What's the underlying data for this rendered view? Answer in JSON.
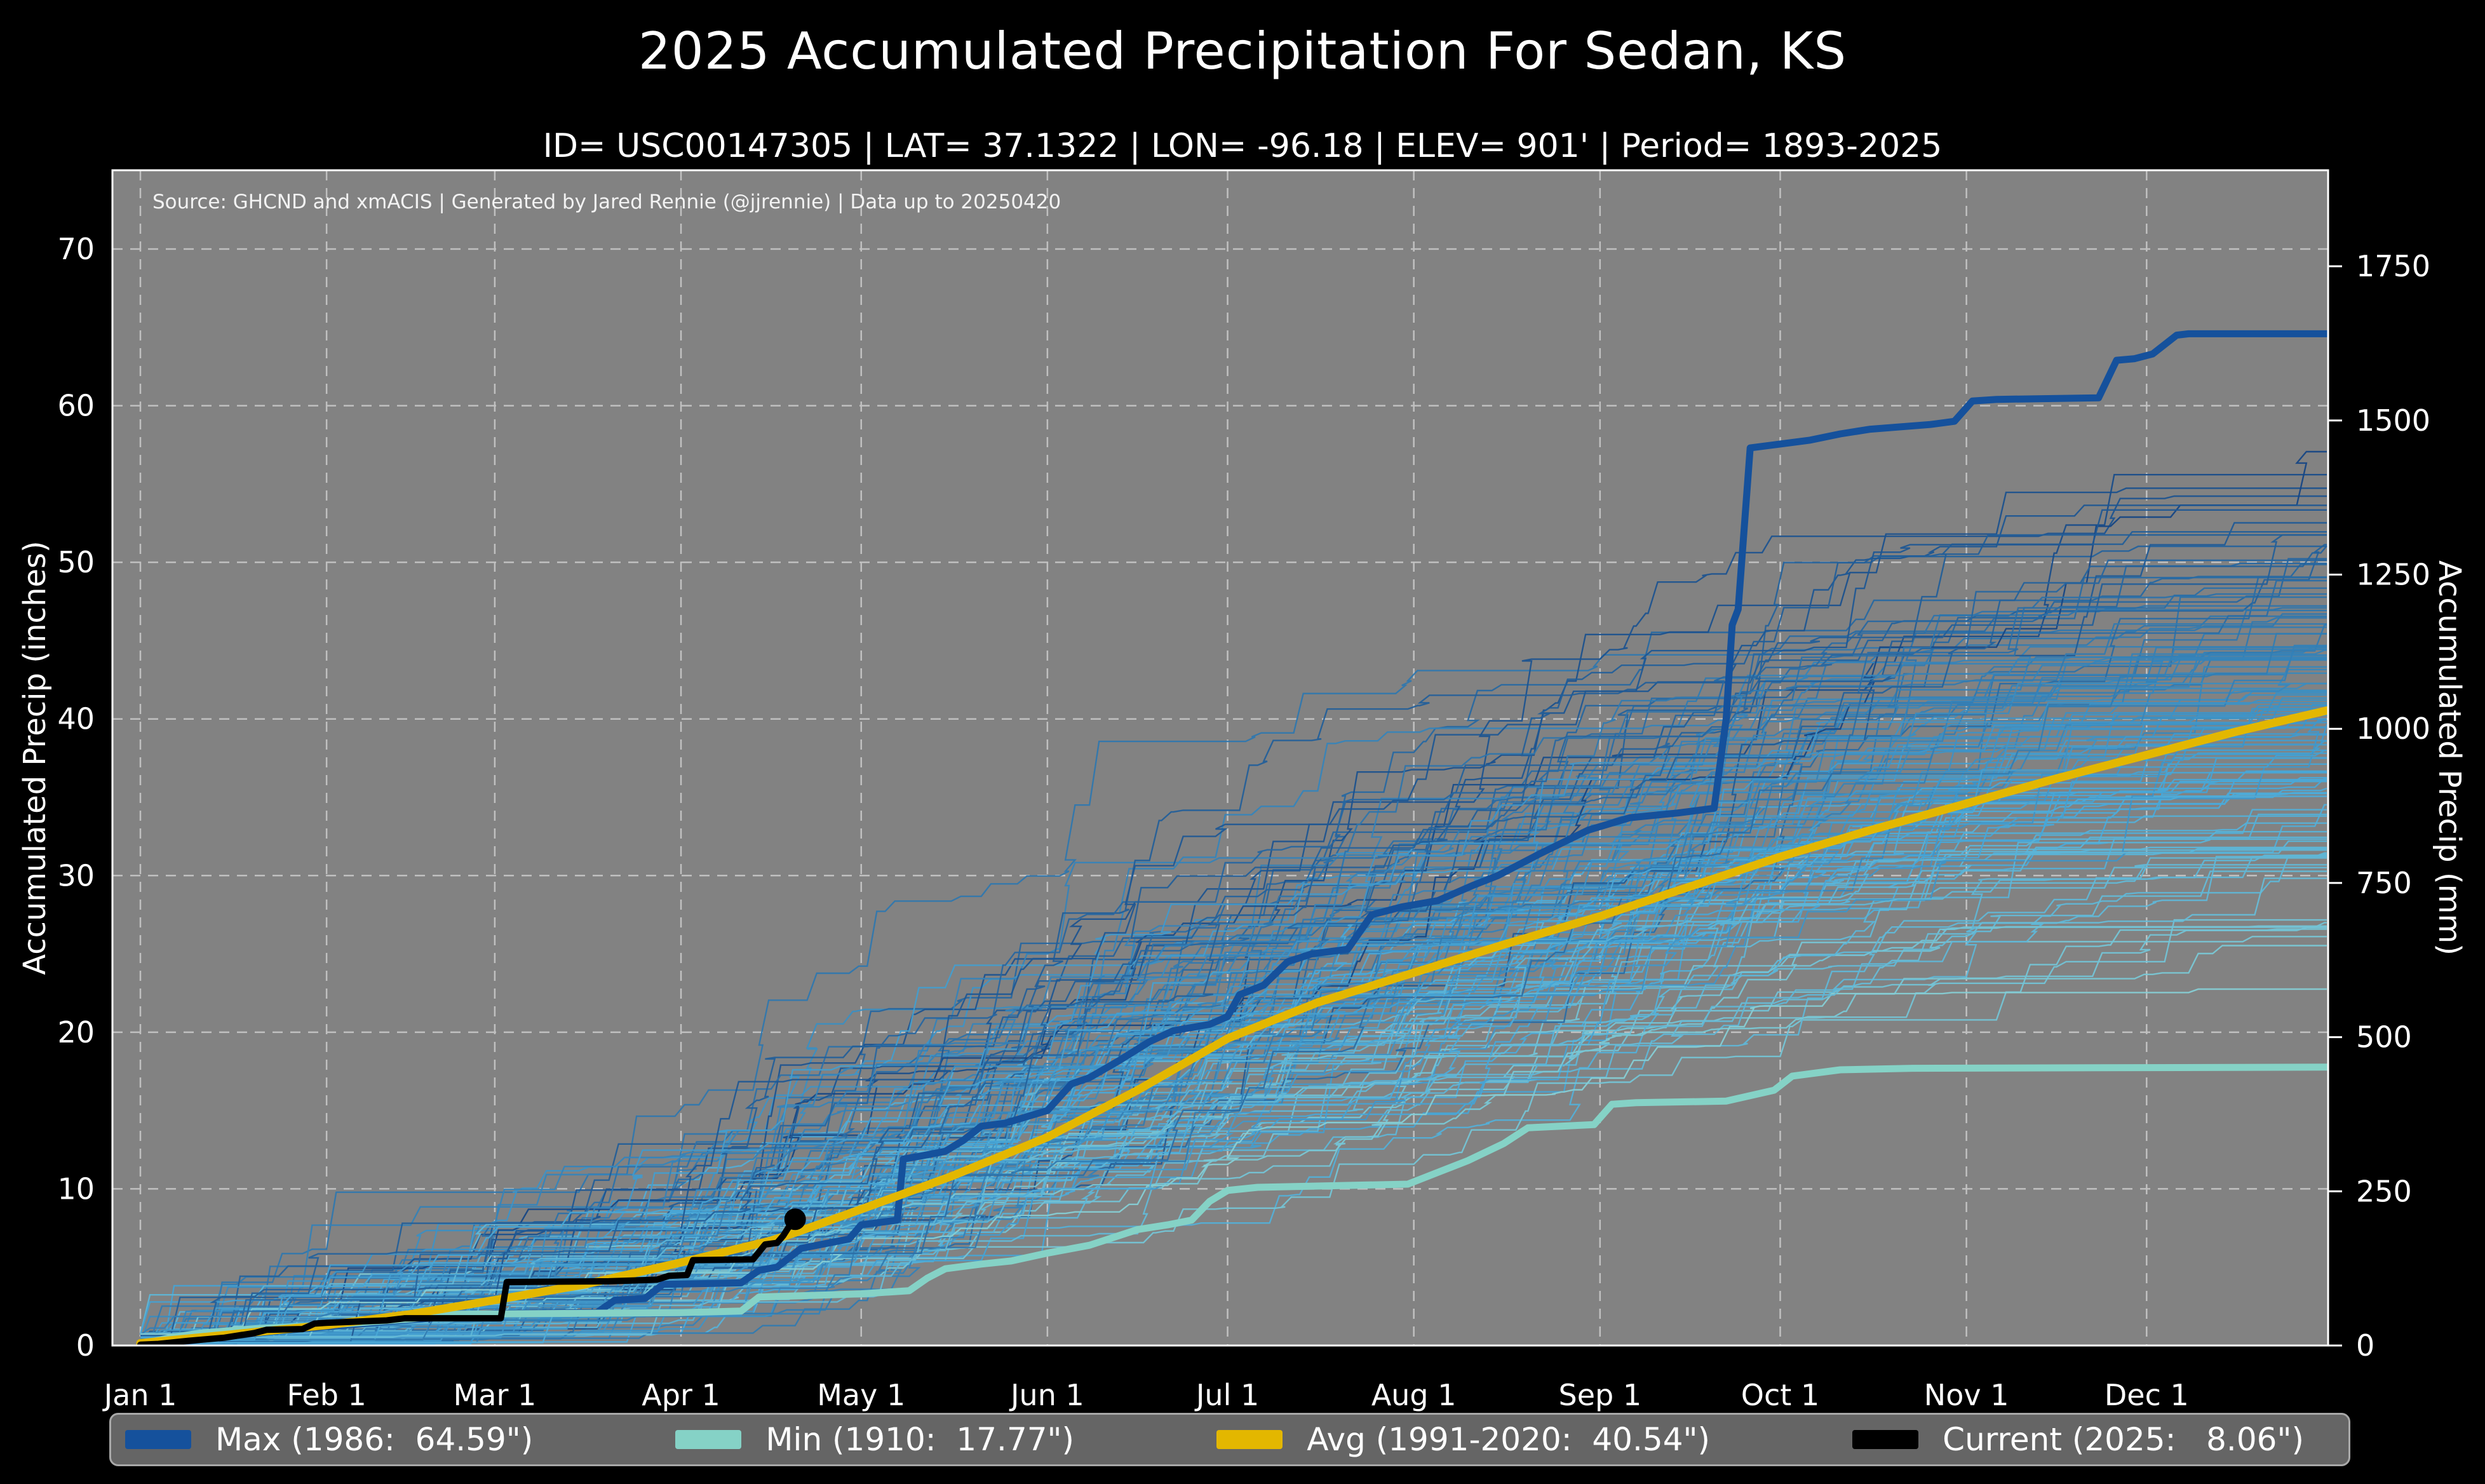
{
  "title": "2025 Accumulated Precipitation For Sedan, KS",
  "subtitle": "ID= USC00147305 | LAT= 37.1322 | LON= -96.18 | ELEV= 901' | Period= 1893-2025",
  "source_note": "Source: GHCND and xmACIS | Generated by Jared Rennie (@jjrennie) | Data up to 20250420",
  "colors": {
    "figure_bg": "#000000",
    "plot_bg": "#828282",
    "grid": "#ffffff",
    "spine": "#ffffff",
    "text": "#ffffff",
    "legend_bg": "#656565",
    "legend_border": "#a8a8a8"
  },
  "chart_data": {
    "type": "line",
    "title": "2025 Accumulated Precipitation For Sedan, KS",
    "xlabel": "",
    "ylabel_left": "Accumulated Precip (inches)",
    "ylabel_right": "Accumulated Precip (mm)",
    "x_tick_labels": [
      "Jan 1",
      "Feb 1",
      "Mar 1",
      "Apr 1",
      "May 1",
      "Jun 1",
      "Jul 1",
      "Aug 1",
      "Sep 1",
      "Oct 1",
      "Nov 1",
      "Dec 1"
    ],
    "x_tick_days": [
      0,
      31,
      59,
      90,
      120,
      151,
      181,
      212,
      243,
      273,
      304,
      334
    ],
    "y_ticks_inches": [
      0,
      10,
      20,
      30,
      40,
      50,
      60,
      70
    ],
    "y_ticks_mm": [
      0,
      250,
      500,
      750,
      1000,
      1250,
      1500,
      1750
    ],
    "ylim_inches": [
      0,
      75
    ],
    "xlim_days": [
      0,
      364
    ],
    "grid": "dashed-white",
    "legend_position": "bottom",
    "series": [
      {
        "name": "Max",
        "legend": "Max (1986:  64.59\")",
        "year": 1986,
        "total_inches": 64.59,
        "color": "#15519c",
        "width": 11,
        "points": [
          [
            0,
            0.05
          ],
          [
            8,
            0.3
          ],
          [
            15,
            0.6
          ],
          [
            22,
            0.9
          ],
          [
            31,
            1.2
          ],
          [
            40,
            1.5
          ],
          [
            50,
            1.8
          ],
          [
            59,
            2.05
          ],
          [
            76,
            2.1
          ],
          [
            79,
            2.9
          ],
          [
            84,
            3.0
          ],
          [
            87,
            3.9
          ],
          [
            100,
            4.0
          ],
          [
            103,
            4.8
          ],
          [
            106,
            5.0
          ],
          [
            110,
            6.2
          ],
          [
            114,
            6.5
          ],
          [
            118,
            6.8
          ],
          [
            120,
            7.7
          ],
          [
            126,
            8.0
          ],
          [
            127,
            11.9
          ],
          [
            130,
            12.1
          ],
          [
            134,
            12.4
          ],
          [
            137,
            13.1
          ],
          [
            140,
            14.0
          ],
          [
            144,
            14.2
          ],
          [
            151,
            15.0
          ],
          [
            155,
            16.7
          ],
          [
            158,
            17.1
          ],
          [
            163,
            18.2
          ],
          [
            168,
            19.4
          ],
          [
            172,
            20.1
          ],
          [
            178,
            20.5
          ],
          [
            181,
            21.0
          ],
          [
            183,
            22.4
          ],
          [
            187,
            23.0
          ],
          [
            191,
            24.5
          ],
          [
            195,
            25.0
          ],
          [
            201,
            25.3
          ],
          [
            205,
            27.5
          ],
          [
            210,
            28.0
          ],
          [
            216,
            28.4
          ],
          [
            222,
            29.4
          ],
          [
            226,
            30.0
          ],
          [
            233,
            31.4
          ],
          [
            241,
            32.9
          ],
          [
            248,
            33.7
          ],
          [
            256,
            34.0
          ],
          [
            262,
            34.3
          ],
          [
            264,
            40.0
          ],
          [
            265,
            46.0
          ],
          [
            266,
            47.0
          ],
          [
            268,
            57.3
          ],
          [
            272,
            57.5
          ],
          [
            278,
            57.8
          ],
          [
            283,
            58.2
          ],
          [
            288,
            58.5
          ],
          [
            298,
            58.8
          ],
          [
            302,
            59.0
          ],
          [
            305,
            60.3
          ],
          [
            309,
            60.4
          ],
          [
            326,
            60.5
          ],
          [
            329,
            62.9
          ],
          [
            332,
            63.0
          ],
          [
            335,
            63.3
          ],
          [
            339,
            64.5
          ],
          [
            341,
            64.59
          ],
          [
            364,
            64.59
          ]
        ]
      },
      {
        "name": "Min",
        "legend": "Min (1910:  17.77\")",
        "year": 1910,
        "total_inches": 17.77,
        "color": "#85d2c6",
        "width": 11,
        "points": [
          [
            0,
            0.1
          ],
          [
            5,
            0.5
          ],
          [
            10,
            0.8
          ],
          [
            20,
            1.1
          ],
          [
            31,
            1.3
          ],
          [
            45,
            1.7
          ],
          [
            52,
            2.0
          ],
          [
            90,
            2.1
          ],
          [
            100,
            2.2
          ],
          [
            103,
            3.1
          ],
          [
            112,
            3.2
          ],
          [
            120,
            3.3
          ],
          [
            128,
            3.5
          ],
          [
            131,
            4.3
          ],
          [
            134,
            4.9
          ],
          [
            140,
            5.2
          ],
          [
            145,
            5.4
          ],
          [
            151,
            5.9
          ],
          [
            158,
            6.4
          ],
          [
            162,
            6.9
          ],
          [
            166,
            7.4
          ],
          [
            171,
            7.7
          ],
          [
            175,
            8.0
          ],
          [
            178,
            9.2
          ],
          [
            181,
            9.9
          ],
          [
            186,
            10.1
          ],
          [
            211,
            10.3
          ],
          [
            217,
            11.2
          ],
          [
            221,
            11.8
          ],
          [
            227,
            12.9
          ],
          [
            231,
            13.9
          ],
          [
            242,
            14.1
          ],
          [
            245,
            15.4
          ],
          [
            249,
            15.5
          ],
          [
            264,
            15.6
          ],
          [
            272,
            16.3
          ],
          [
            275,
            17.2
          ],
          [
            283,
            17.6
          ],
          [
            295,
            17.7
          ],
          [
            364,
            17.77
          ]
        ]
      },
      {
        "name": "Avg",
        "legend": "Avg (1991-2020:  40.54\")",
        "period": "1991-2020",
        "total_inches": 40.54,
        "color": "#e3b700",
        "width": 13,
        "points": [
          [
            0,
            0.15
          ],
          [
            15,
            0.7
          ],
          [
            31,
            1.3
          ],
          [
            45,
            2.0
          ],
          [
            59,
            2.9
          ],
          [
            74,
            3.9
          ],
          [
            90,
            5.3
          ],
          [
            105,
            6.7
          ],
          [
            109,
            7.2
          ],
          [
            120,
            8.7
          ],
          [
            135,
            10.8
          ],
          [
            151,
            13.3
          ],
          [
            166,
            16.3
          ],
          [
            181,
            19.6
          ],
          [
            196,
            21.9
          ],
          [
            212,
            23.8
          ],
          [
            227,
            25.6
          ],
          [
            243,
            27.4
          ],
          [
            258,
            29.3
          ],
          [
            273,
            31.2
          ],
          [
            288,
            32.9
          ],
          [
            304,
            34.6
          ],
          [
            319,
            36.2
          ],
          [
            334,
            37.7
          ],
          [
            349,
            39.2
          ],
          [
            364,
            40.54
          ]
        ]
      },
      {
        "name": "Current",
        "legend": "Current (2025:   8.06\")",
        "year": 2025,
        "total_inches": 8.06,
        "data_through": "20250420",
        "color": "#000000",
        "width": 10,
        "marker": [
          109,
          8.06
        ],
        "points": [
          [
            0,
            0.05
          ],
          [
            3,
            0.1
          ],
          [
            8,
            0.3
          ],
          [
            14,
            0.5
          ],
          [
            19,
            0.8
          ],
          [
            21,
            1.0
          ],
          [
            27,
            1.05
          ],
          [
            29,
            1.4
          ],
          [
            31,
            1.45
          ],
          [
            41,
            1.6
          ],
          [
            44,
            1.74
          ],
          [
            60,
            1.74
          ],
          [
            61,
            4.05
          ],
          [
            78,
            4.1
          ],
          [
            86,
            4.2
          ],
          [
            88,
            4.45
          ],
          [
            91,
            4.5
          ],
          [
            92,
            5.45
          ],
          [
            102,
            5.5
          ],
          [
            104,
            6.45
          ],
          [
            106,
            6.55
          ],
          [
            107,
            7.0
          ],
          [
            108,
            7.6
          ],
          [
            109,
            8.06
          ]
        ]
      }
    ],
    "ensemble": {
      "note": "Thin background traces: one accumulated-precip curve per year 1893-2024, colored light teal (dry years) to dark navy (wet years); individual traces approximated procedurally.",
      "count": 130,
      "years": "1893-2024",
      "final_range": [
        18,
        58.5
      ],
      "color_low": "#9bdcd2",
      "color_mid": "#49a8d8",
      "color_high": "#123f7e",
      "line_width": 2.4
    }
  },
  "legend": {
    "items": [
      {
        "label": "Max (1986:  64.59\")"
      },
      {
        "label": "Min (1910:  17.77\")"
      },
      {
        "label": "Avg (1991-2020:  40.54\")"
      },
      {
        "label": "Current (2025:   8.06\")"
      }
    ]
  }
}
